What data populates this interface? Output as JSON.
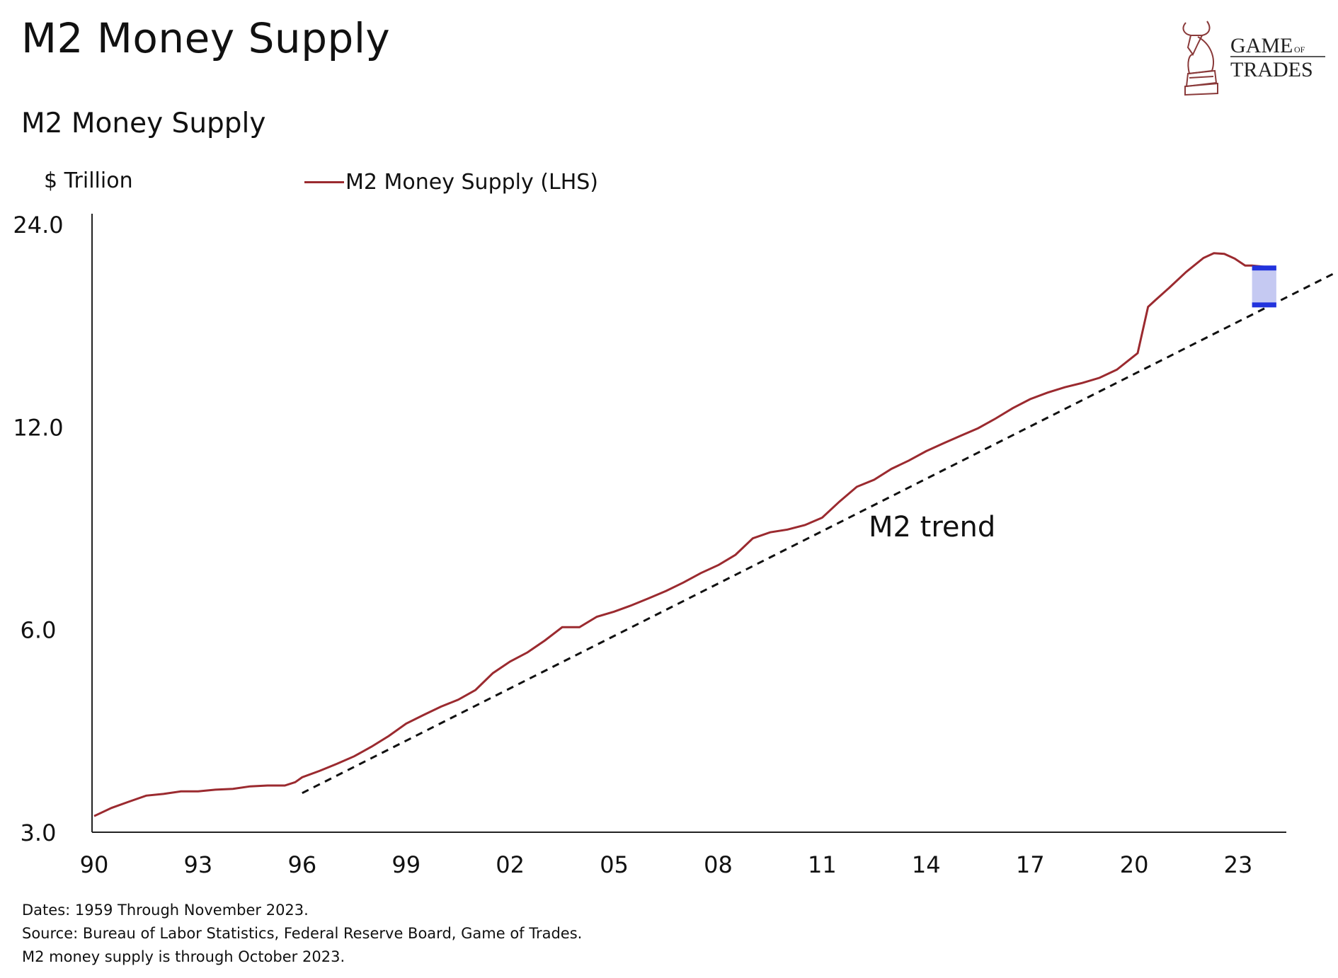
{
  "header": {
    "title": "M2 Money Supply",
    "logo_text": "GAME OF TRADES"
  },
  "chart_data": {
    "type": "line",
    "title": "M2 Money Supply",
    "ylabel": "$ Trillion",
    "xlabel": "",
    "y_scale": "log",
    "ylim": [
      3.0,
      24.0
    ],
    "yticks": [
      "24.0",
      "12.0",
      "6.0",
      "3.0"
    ],
    "ytick_values": [
      24,
      12,
      6,
      3
    ],
    "xlim": [
      1990,
      2025.9
    ],
    "xticks": [
      "90",
      "93",
      "96",
      "99",
      "02",
      "05",
      "08",
      "11",
      "14",
      "17",
      "20",
      "23"
    ],
    "xtick_values": [
      1990,
      1993,
      1996,
      1999,
      2002,
      2005,
      2008,
      2011,
      2014,
      2017,
      2020,
      2023
    ],
    "grid": false,
    "legend_placement": "top-left",
    "series": [
      {
        "name": "M2 Money Supply (LHS)",
        "color": "#9b2a2f",
        "points": [
          [
            1990.0,
            3.17
          ],
          [
            1990.5,
            3.26
          ],
          [
            1991.0,
            3.33
          ],
          [
            1991.5,
            3.4
          ],
          [
            1992.0,
            3.42
          ],
          [
            1992.5,
            3.45
          ],
          [
            1993.0,
            3.45
          ],
          [
            1993.5,
            3.47
          ],
          [
            1994.0,
            3.48
          ],
          [
            1994.5,
            3.51
          ],
          [
            1995.0,
            3.52
          ],
          [
            1995.5,
            3.52
          ],
          [
            1995.8,
            3.56
          ],
          [
            1996.0,
            3.62
          ],
          [
            1996.5,
            3.7
          ],
          [
            1997.0,
            3.79
          ],
          [
            1997.5,
            3.89
          ],
          [
            1998.0,
            4.02
          ],
          [
            1998.5,
            4.17
          ],
          [
            1999.0,
            4.35
          ],
          [
            1999.5,
            4.48
          ],
          [
            2000.0,
            4.61
          ],
          [
            2000.5,
            4.72
          ],
          [
            2001.0,
            4.88
          ],
          [
            2001.5,
            5.17
          ],
          [
            2002.0,
            5.38
          ],
          [
            2002.5,
            5.55
          ],
          [
            2003.0,
            5.78
          ],
          [
            2003.5,
            6.05
          ],
          [
            2004.0,
            6.05
          ],
          [
            2004.5,
            6.27
          ],
          [
            2005.0,
            6.38
          ],
          [
            2005.5,
            6.52
          ],
          [
            2006.0,
            6.68
          ],
          [
            2006.5,
            6.85
          ],
          [
            2007.0,
            7.05
          ],
          [
            2007.5,
            7.28
          ],
          [
            2008.0,
            7.48
          ],
          [
            2008.5,
            7.75
          ],
          [
            2009.0,
            8.2
          ],
          [
            2009.5,
            8.37
          ],
          [
            2010.0,
            8.45
          ],
          [
            2010.5,
            8.58
          ],
          [
            2011.0,
            8.8
          ],
          [
            2011.5,
            9.3
          ],
          [
            2012.0,
            9.78
          ],
          [
            2012.5,
            10.02
          ],
          [
            2013.0,
            10.4
          ],
          [
            2013.5,
            10.7
          ],
          [
            2014.0,
            11.05
          ],
          [
            2014.5,
            11.35
          ],
          [
            2015.0,
            11.65
          ],
          [
            2015.5,
            11.95
          ],
          [
            2016.0,
            12.35
          ],
          [
            2016.5,
            12.8
          ],
          [
            2017.0,
            13.2
          ],
          [
            2017.5,
            13.5
          ],
          [
            2018.0,
            13.75
          ],
          [
            2018.5,
            13.95
          ],
          [
            2019.0,
            14.2
          ],
          [
            2019.5,
            14.6
          ],
          [
            2020.1,
            15.45
          ],
          [
            2020.4,
            18.1
          ],
          [
            2020.6,
            18.5
          ],
          [
            2021.0,
            19.3
          ],
          [
            2021.5,
            20.4
          ],
          [
            2022.0,
            21.4
          ],
          [
            2022.3,
            21.75
          ],
          [
            2022.6,
            21.7
          ],
          [
            2022.9,
            21.35
          ],
          [
            2023.2,
            20.85
          ],
          [
            2023.4,
            20.85
          ],
          [
            2023.8,
            20.75
          ]
        ]
      }
    ],
    "trend": {
      "label": "M2 trend",
      "color": "#111111",
      "style": "dashed",
      "start": [
        1996.0,
        3.43
      ],
      "end": [
        2025.85,
        20.4
      ]
    },
    "gap_marker": {
      "color": "#2233dd",
      "fill": "#c5c9f2",
      "x_range": [
        2023.4,
        2024.1
      ],
      "y_range": [
        18.2,
        20.7
      ]
    }
  },
  "footnotes": [
    "Dates: 1959 Through November 2023.",
    "Source: Bureau of Labor Statistics, Federal Reserve Board, Game of Trades.",
    "M2 money supply is through October 2023."
  ]
}
